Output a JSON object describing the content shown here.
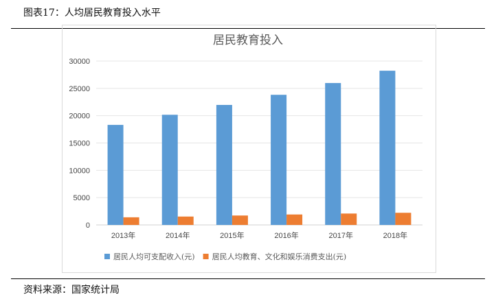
{
  "caption": "图表17：人均居民教育投入水平",
  "source": "资料来源：国家统计局",
  "chart_data": {
    "type": "bar",
    "title": "居民教育投入",
    "categories": [
      "2013年",
      "2014年",
      "2015年",
      "2016年",
      "2017年",
      "2018年"
    ],
    "series": [
      {
        "name": "居民人均可支配收入(元)",
        "color": "#5b9bd5",
        "values": [
          18311,
          20167,
          21966,
          23821,
          25974,
          28228
        ]
      },
      {
        "name": "居民人均教育、文化和娱乐消费支出(元)",
        "color": "#ed7d31",
        "values": [
          1398,
          1536,
          1723,
          1915,
          2086,
          2226
        ]
      }
    ],
    "yticks": [
      0,
      5000,
      10000,
      15000,
      20000,
      25000,
      30000
    ],
    "ylim": [
      0,
      30000
    ],
    "grid": true,
    "legend": "bottom"
  }
}
